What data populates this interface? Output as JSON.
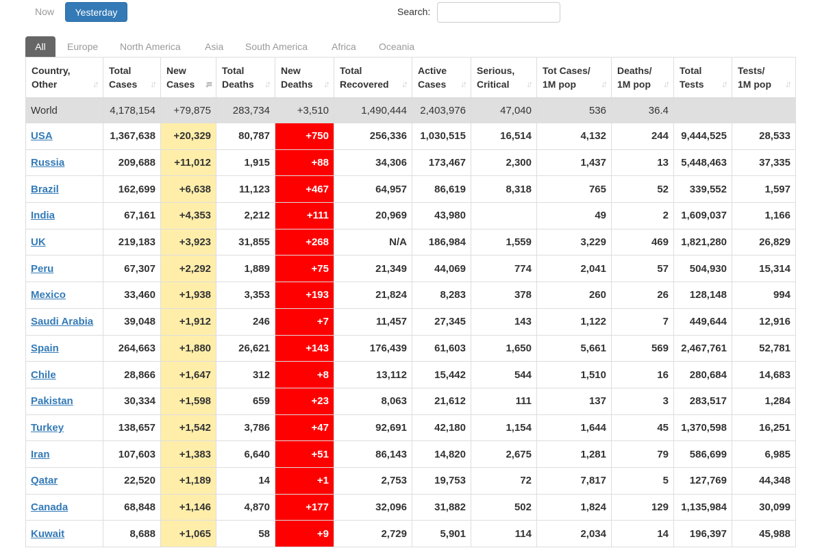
{
  "top": {
    "now_label": "Now",
    "yesterday_label": "Yesterday",
    "search_label": "Search:",
    "search_value": ""
  },
  "tabs": [
    "All",
    "Europe",
    "North America",
    "Asia",
    "South America",
    "Africa",
    "Oceania"
  ],
  "active_tab": "All",
  "columns": [
    [
      "Country,",
      "Other"
    ],
    [
      "Total",
      "Cases"
    ],
    [
      "New",
      "Cases"
    ],
    [
      "Total",
      "Deaths"
    ],
    [
      "New",
      "Deaths"
    ],
    [
      "Total",
      "Recovered"
    ],
    [
      "Active",
      "Cases"
    ],
    [
      "Serious,",
      "Critical"
    ],
    [
      "Tot Cases/",
      "1M pop"
    ],
    [
      "Deaths/",
      "1M pop"
    ],
    [
      "Total",
      "Tests"
    ],
    [
      "Tests/",
      "1M pop"
    ]
  ],
  "sorted_column_index": 2,
  "world": [
    "World",
    "4,178,154",
    "+79,875",
    "283,734",
    "+3,510",
    "1,490,444",
    "2,403,976",
    "47,040",
    "536",
    "36.4",
    "",
    ""
  ],
  "rows": [
    [
      "USA",
      "1,367,638",
      "+20,329",
      "80,787",
      "+750",
      "256,336",
      "1,030,515",
      "16,514",
      "4,132",
      "244",
      "9,444,525",
      "28,533"
    ],
    [
      "Russia",
      "209,688",
      "+11,012",
      "1,915",
      "+88",
      "34,306",
      "173,467",
      "2,300",
      "1,437",
      "13",
      "5,448,463",
      "37,335"
    ],
    [
      "Brazil",
      "162,699",
      "+6,638",
      "11,123",
      "+467",
      "64,957",
      "86,619",
      "8,318",
      "765",
      "52",
      "339,552",
      "1,597"
    ],
    [
      "India",
      "67,161",
      "+4,353",
      "2,212",
      "+111",
      "20,969",
      "43,980",
      "",
      "49",
      "2",
      "1,609,037",
      "1,166"
    ],
    [
      "UK",
      "219,183",
      "+3,923",
      "31,855",
      "+268",
      "N/A",
      "186,984",
      "1,559",
      "3,229",
      "469",
      "1,821,280",
      "26,829"
    ],
    [
      "Peru",
      "67,307",
      "+2,292",
      "1,889",
      "+75",
      "21,349",
      "44,069",
      "774",
      "2,041",
      "57",
      "504,930",
      "15,314"
    ],
    [
      "Mexico",
      "33,460",
      "+1,938",
      "3,353",
      "+193",
      "21,824",
      "8,283",
      "378",
      "260",
      "26",
      "128,148",
      "994"
    ],
    [
      "Saudi Arabia",
      "39,048",
      "+1,912",
      "246",
      "+7",
      "11,457",
      "27,345",
      "143",
      "1,122",
      "7",
      "449,644",
      "12,916"
    ],
    [
      "Spain",
      "264,663",
      "+1,880",
      "26,621",
      "+143",
      "176,439",
      "61,603",
      "1,650",
      "5,661",
      "569",
      "2,467,761",
      "52,781"
    ],
    [
      "Chile",
      "28,866",
      "+1,647",
      "312",
      "+8",
      "13,112",
      "15,442",
      "544",
      "1,510",
      "16",
      "280,684",
      "14,683"
    ],
    [
      "Pakistan",
      "30,334",
      "+1,598",
      "659",
      "+23",
      "8,063",
      "21,612",
      "111",
      "137",
      "3",
      "283,517",
      "1,284"
    ],
    [
      "Turkey",
      "138,657",
      "+1,542",
      "3,786",
      "+47",
      "92,691",
      "42,180",
      "1,154",
      "1,644",
      "45",
      "1,370,598",
      "16,251"
    ],
    [
      "Iran",
      "107,603",
      "+1,383",
      "6,640",
      "+51",
      "86,143",
      "14,820",
      "2,675",
      "1,281",
      "79",
      "586,699",
      "6,985"
    ],
    [
      "Qatar",
      "22,520",
      "+1,189",
      "14",
      "+1",
      "2,753",
      "19,753",
      "72",
      "7,817",
      "5",
      "127,769",
      "44,348"
    ],
    [
      "Canada",
      "68,848",
      "+1,146",
      "4,870",
      "+177",
      "32,096",
      "31,882",
      "502",
      "1,824",
      "129",
      "1,135,984",
      "30,099"
    ],
    [
      "Kuwait",
      "8,688",
      "+1,065",
      "58",
      "+9",
      "2,729",
      "5,901",
      "114",
      "2,034",
      "14",
      "196,397",
      "45,988"
    ]
  ],
  "colors": {
    "accent": "#337ab7",
    "new_cases_bg": "#ffeeaa",
    "new_deaths_bg": "#ff0000",
    "world_row_bg": "#dfdfdf",
    "active_tab_bg": "#666666"
  }
}
